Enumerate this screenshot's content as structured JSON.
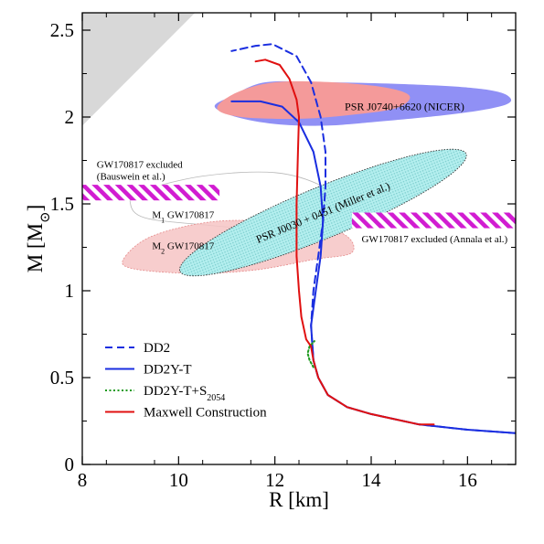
{
  "chart_data": {
    "type": "line",
    "xlabel": "R [km]",
    "ylabel_main": "M [M",
    "ylabel_sub": "⊙",
    "ylabel_close": "]",
    "xlim": [
      8,
      17
    ],
    "ylim": [
      0,
      2.6
    ],
    "x_ticks": [
      8,
      10,
      12,
      14,
      16
    ],
    "y_ticks": [
      0,
      0.5,
      1,
      1.5,
      2,
      2.5
    ],
    "x_tick_labels": [
      "8",
      "10",
      "12",
      "14",
      "16"
    ],
    "y_tick_labels": [
      "0",
      "0.5",
      "1",
      "1.5",
      "2",
      "2.5"
    ],
    "grid": false,
    "legend_position": "lower-left",
    "series": [
      {
        "name": "DD2",
        "color": "#1a2ee0",
        "dash": "dashed",
        "points": [
          [
            17.0,
            0.18
          ],
          [
            16.0,
            0.2
          ],
          [
            15.0,
            0.23
          ],
          [
            14.0,
            0.29
          ],
          [
            13.5,
            0.33
          ],
          [
            13.1,
            0.4
          ],
          [
            12.9,
            0.5
          ],
          [
            12.8,
            0.6
          ],
          [
            12.75,
            0.8
          ],
          [
            12.8,
            1.0
          ],
          [
            12.9,
            1.2
          ],
          [
            13.0,
            1.4
          ],
          [
            13.05,
            1.6
          ],
          [
            13.05,
            1.8
          ],
          [
            12.95,
            2.0
          ],
          [
            12.75,
            2.2
          ],
          [
            12.45,
            2.35
          ],
          [
            11.95,
            2.42
          ],
          [
            11.6,
            2.41
          ],
          [
            11.1,
            2.38
          ]
        ]
      },
      {
        "name": "DD2Y-T",
        "color": "#1a2ee0",
        "dash": "solid",
        "points": [
          [
            17.0,
            0.18
          ],
          [
            16.0,
            0.2
          ],
          [
            15.0,
            0.23
          ],
          [
            14.0,
            0.29
          ],
          [
            13.5,
            0.33
          ],
          [
            13.1,
            0.4
          ],
          [
            12.9,
            0.5
          ],
          [
            12.8,
            0.6
          ],
          [
            12.75,
            0.8
          ],
          [
            12.85,
            1.0
          ],
          [
            12.95,
            1.2
          ],
          [
            13.0,
            1.4
          ],
          [
            12.95,
            1.6
          ],
          [
            12.8,
            1.8
          ],
          [
            12.5,
            1.97
          ],
          [
            12.15,
            2.06
          ],
          [
            11.7,
            2.09
          ],
          [
            11.1,
            2.09
          ]
        ]
      },
      {
        "name": "DD2Y-T+S",
        "name_sub": "2054",
        "color": "#1e9a1e",
        "dash": "dotted",
        "points": [
          [
            12.8,
            0.56
          ],
          [
            12.72,
            0.6
          ],
          [
            12.68,
            0.64
          ],
          [
            12.72,
            0.68
          ],
          [
            12.82,
            0.71
          ]
        ]
      },
      {
        "name": "Maxwell Construction",
        "color": "#e01010",
        "dash": "solid",
        "points": [
          [
            15.3,
            0.23
          ],
          [
            15.0,
            0.23
          ],
          [
            14.5,
            0.26
          ],
          [
            14.0,
            0.29
          ],
          [
            13.5,
            0.33
          ],
          [
            13.1,
            0.4
          ],
          [
            12.9,
            0.5
          ],
          [
            12.8,
            0.6
          ],
          [
            12.75,
            0.68
          ],
          [
            12.65,
            0.72
          ],
          [
            12.55,
            0.85
          ],
          [
            12.5,
            1.0
          ],
          [
            12.45,
            1.2
          ],
          [
            12.45,
            1.5
          ],
          [
            12.48,
            1.8
          ],
          [
            12.5,
            2.0
          ],
          [
            12.45,
            2.1
          ],
          [
            12.3,
            2.22
          ],
          [
            12.1,
            2.3
          ],
          [
            11.8,
            2.33
          ],
          [
            11.6,
            2.32
          ]
        ]
      }
    ],
    "regions": {
      "excluded_gray_color": "#d8d8d8",
      "nicer_j0740": {
        "label": "PSR J0740+6620 (NICER)",
        "outer_color": "#9090f5",
        "inner_color": "#f49a9a"
      },
      "miller_j0030": {
        "label": "PSR J0030 + 0451 (Miller et al.)",
        "fill_color": "#a8ecec",
        "edge_color": "#333333"
      },
      "m1_gw170817": {
        "label_main": "M",
        "label_sub": "1",
        "label_rest": " GW170817",
        "edge_color": "#b8b8b8"
      },
      "m2_gw170817": {
        "label_main": "M",
        "label_sub": "2",
        "label_rest": " GW170817",
        "fill_color": "#f6c4c4",
        "edge_color": "#e58a8a"
      },
      "bauswein_band": {
        "label_line1": "GW170817 excluded",
        "label_line2": "(Bauswein et al.)",
        "mass_range": [
          1.52,
          1.61
        ],
        "radius_range": [
          8.0,
          10.85
        ],
        "color": "#d11cd1"
      },
      "annala_band": {
        "label": "GW170817 excluded (Annala et al.)",
        "mass_range": [
          1.36,
          1.45
        ],
        "radius_range": [
          13.6,
          17.0
        ],
        "color": "#d11cd1"
      }
    }
  }
}
